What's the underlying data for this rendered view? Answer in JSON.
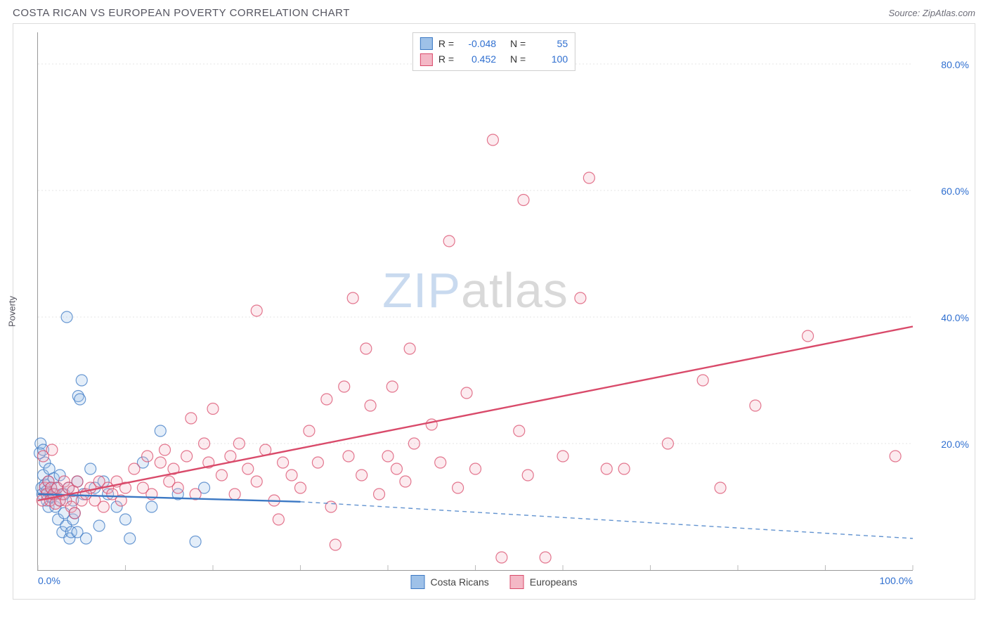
{
  "title": "COSTA RICAN VS EUROPEAN POVERTY CORRELATION CHART",
  "source": "Source: ZipAtlas.com",
  "ylabel": "Poverty",
  "watermark": {
    "part1": "ZIP",
    "part2": "atlas"
  },
  "chart": {
    "type": "scatter",
    "background": "#ffffff",
    "grid_color": "#e4e4e4",
    "grid_dash": "2,3",
    "axis_color": "#999999",
    "tick_color": "#bbbbbb",
    "label_color": "#2f6fd0",
    "xlim": [
      0,
      100
    ],
    "ylim": [
      0,
      85
    ],
    "xticks": [
      0,
      10,
      20,
      30,
      40,
      50,
      60,
      70,
      80,
      90,
      100
    ],
    "xtick_labels": {
      "0": "0.0%",
      "100": "100.0%"
    },
    "yticks": [
      20,
      40,
      60,
      80
    ],
    "ytick_labels": {
      "20": "20.0%",
      "40": "40.0%",
      "60": "60.0%",
      "80": "80.0%"
    },
    "marker_radius": 8,
    "marker_stroke_width": 1.2,
    "marker_fill_opacity": 0.28,
    "trend_width": 2.4,
    "series": [
      {
        "name": "Costa Ricans",
        "color": "#3b78c4",
        "fill": "#9ec1e8",
        "R": "-0.048",
        "N": "55",
        "trend": {
          "x1": 0,
          "y1": 12.0,
          "x2": 30,
          "y2": 10.8,
          "extend_to": 100,
          "extend_y": 5.0
        },
        "points": [
          [
            0.2,
            18.5
          ],
          [
            0.3,
            20
          ],
          [
            0.4,
            13
          ],
          [
            0.5,
            12
          ],
          [
            0.6,
            15
          ],
          [
            0.6,
            19
          ],
          [
            0.8,
            13.5
          ],
          [
            0.8,
            17
          ],
          [
            1.0,
            12.5
          ],
          [
            1.0,
            11
          ],
          [
            1.2,
            14
          ],
          [
            1.2,
            10
          ],
          [
            1.3,
            16
          ],
          [
            1.5,
            13
          ],
          [
            1.5,
            11.5
          ],
          [
            1.7,
            12
          ],
          [
            1.8,
            14.5
          ],
          [
            2.0,
            12
          ],
          [
            2.0,
            10
          ],
          [
            2.2,
            13
          ],
          [
            2.3,
            8
          ],
          [
            2.5,
            15
          ],
          [
            2.5,
            11
          ],
          [
            2.8,
            6
          ],
          [
            3.0,
            12
          ],
          [
            3.0,
            9
          ],
          [
            3.2,
            7
          ],
          [
            3.3,
            40
          ],
          [
            3.5,
            13
          ],
          [
            3.6,
            5
          ],
          [
            3.8,
            6
          ],
          [
            4.0,
            11
          ],
          [
            4.0,
            8
          ],
          [
            4.2,
            9
          ],
          [
            4.5,
            14
          ],
          [
            4.5,
            6
          ],
          [
            4.6,
            27.5
          ],
          [
            4.8,
            27
          ],
          [
            5.0,
            30
          ],
          [
            5.2,
            12
          ],
          [
            5.5,
            5
          ],
          [
            6.0,
            16
          ],
          [
            6.5,
            13
          ],
          [
            7.0,
            7
          ],
          [
            7.5,
            14
          ],
          [
            8.0,
            12
          ],
          [
            9.0,
            10
          ],
          [
            10,
            8
          ],
          [
            10.5,
            5
          ],
          [
            12,
            17
          ],
          [
            13,
            10
          ],
          [
            14,
            22
          ],
          [
            16,
            12
          ],
          [
            18,
            4.5
          ],
          [
            19,
            13
          ]
        ]
      },
      {
        "name": "Europeans",
        "color": "#d94a6a",
        "fill": "#f4b8c6",
        "R": "0.452",
        "N": "100",
        "trend": {
          "x1": 0,
          "y1": 11.0,
          "x2": 100,
          "y2": 38.5
        },
        "points": [
          [
            0.5,
            11
          ],
          [
            0.6,
            18
          ],
          [
            0.8,
            13
          ],
          [
            1.0,
            12
          ],
          [
            1.2,
            14
          ],
          [
            1.4,
            11
          ],
          [
            1.5,
            13
          ],
          [
            1.6,
            19
          ],
          [
            1.8,
            12
          ],
          [
            2.0,
            10.5
          ],
          [
            2.2,
            13
          ],
          [
            2.5,
            11
          ],
          [
            2.8,
            12
          ],
          [
            3.0,
            14
          ],
          [
            3.2,
            11
          ],
          [
            3.5,
            13
          ],
          [
            3.8,
            10
          ],
          [
            4.0,
            12.5
          ],
          [
            4.2,
            9
          ],
          [
            4.5,
            14
          ],
          [
            5.0,
            11
          ],
          [
            5.5,
            12
          ],
          [
            6.0,
            13
          ],
          [
            6.5,
            11
          ],
          [
            7.0,
            14
          ],
          [
            7.5,
            10
          ],
          [
            8.0,
            13
          ],
          [
            8.5,
            12
          ],
          [
            9.0,
            14
          ],
          [
            9.5,
            11
          ],
          [
            10,
            13
          ],
          [
            11,
            16
          ],
          [
            12,
            13
          ],
          [
            12.5,
            18
          ],
          [
            13,
            12
          ],
          [
            14,
            17
          ],
          [
            14.5,
            19
          ],
          [
            15,
            14
          ],
          [
            15.5,
            16
          ],
          [
            16,
            13
          ],
          [
            17,
            18
          ],
          [
            17.5,
            24
          ],
          [
            18,
            12
          ],
          [
            19,
            20
          ],
          [
            19.5,
            17
          ],
          [
            20,
            25.5
          ],
          [
            21,
            15
          ],
          [
            22,
            18
          ],
          [
            22.5,
            12
          ],
          [
            23,
            20
          ],
          [
            24,
            16
          ],
          [
            25,
            14
          ],
          [
            25,
            41
          ],
          [
            26,
            19
          ],
          [
            27,
            11
          ],
          [
            27.5,
            8
          ],
          [
            28,
            17
          ],
          [
            29,
            15
          ],
          [
            30,
            13
          ],
          [
            31,
            22
          ],
          [
            32,
            17
          ],
          [
            33,
            27
          ],
          [
            33.5,
            10
          ],
          [
            34,
            4
          ],
          [
            35,
            29
          ],
          [
            35.5,
            18
          ],
          [
            36,
            43
          ],
          [
            37,
            15
          ],
          [
            37.5,
            35
          ],
          [
            38,
            26
          ],
          [
            39,
            12
          ],
          [
            40,
            18
          ],
          [
            40.5,
            29
          ],
          [
            41,
            16
          ],
          [
            42,
            14
          ],
          [
            42.5,
            35
          ],
          [
            43,
            20
          ],
          [
            45,
            23
          ],
          [
            46,
            17
          ],
          [
            47,
            52
          ],
          [
            48,
            13
          ],
          [
            49,
            28
          ],
          [
            50,
            16
          ],
          [
            52,
            68
          ],
          [
            53,
            2
          ],
          [
            55,
            22
          ],
          [
            55.5,
            58.5
          ],
          [
            56,
            15
          ],
          [
            58,
            2
          ],
          [
            60,
            18
          ],
          [
            62,
            43
          ],
          [
            63,
            62
          ],
          [
            65,
            16
          ],
          [
            67,
            16
          ],
          [
            72,
            20
          ],
          [
            76,
            30
          ],
          [
            78,
            13
          ],
          [
            82,
            26
          ],
          [
            88,
            37
          ],
          [
            98,
            18
          ]
        ]
      }
    ]
  },
  "legend": {
    "series1_label": "Costa Ricans",
    "series2_label": "Europeans"
  },
  "stats_box": {
    "r_label": "R =",
    "n_label": "N ="
  }
}
